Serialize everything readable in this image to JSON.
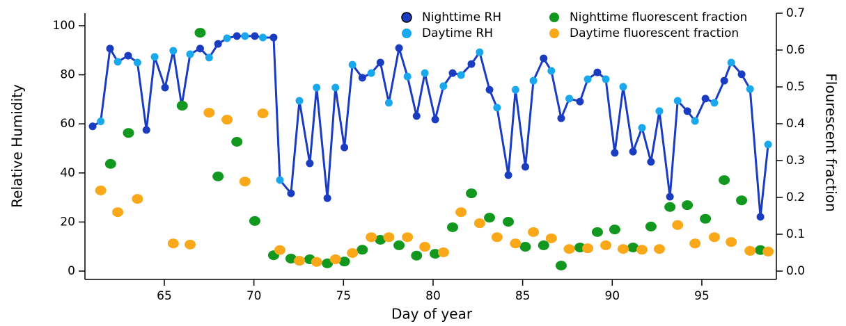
{
  "chart_data": {
    "type": "scatter",
    "xlabel": "Day of year",
    "ylabel": "Relative Humidity",
    "y2label": "Flourescent fraction",
    "xlim": [
      60.57,
      99.16
    ],
    "xticks": [
      65,
      70,
      75,
      80,
      85,
      90,
      95
    ],
    "ylim": [
      -3.4,
      105.1
    ],
    "yticks": [
      0,
      20,
      40,
      60,
      80,
      100
    ],
    "y2lim": [
      -0.0226,
      0.7
    ],
    "y2ticks": [
      {
        "value": 0,
        "label": "0.0"
      },
      0.1,
      0.2,
      0.3,
      0.4,
      0.5,
      0.6,
      0.7
    ],
    "rh_line_color": "#1a3cc0",
    "series": [
      {
        "name": "Nighttime RH",
        "color": "#1a3cc0",
        "axis": "y",
        "x": [
          61.0,
          61.97,
          62.98,
          64.0,
          65.04,
          65.97,
          67.0,
          68.0,
          69.05,
          70.05,
          71.1,
          72.07,
          73.12,
          74.1,
          75.05,
          76.05,
          77.06,
          78.1,
          79.08,
          80.12,
          81.09,
          82.14,
          83.15,
          84.2,
          85.15,
          86.17,
          87.15,
          88.2,
          89.17,
          90.14,
          91.16,
          92.16,
          93.22,
          94.19,
          95.2,
          96.25,
          97.22,
          98.27
        ],
        "values": [
          59,
          90.7,
          87.8,
          57.5,
          74.8,
          67.4,
          90.7,
          92.6,
          95.8,
          95.8,
          95.2,
          31.7,
          43.9,
          29.7,
          50.4,
          78.8,
          85,
          90.9,
          63.2,
          61.8,
          80.7,
          84.4,
          73.9,
          39.1,
          42.5,
          86.7,
          62.3,
          69.1,
          81,
          48.2,
          48.7,
          44.5,
          30.3,
          65.2,
          70.3,
          77.6,
          80.2,
          22.1
        ]
      },
      {
        "name": "Daytime RH",
        "color": "#1aa8ec",
        "axis": "y",
        "x": [
          61.45,
          62.4,
          63.5,
          64.46,
          65.5,
          66.44,
          67.5,
          68.5,
          69.5,
          70.5,
          71.45,
          72.54,
          73.5,
          74.55,
          75.5,
          76.55,
          77.53,
          78.57,
          79.54,
          80.58,
          81.56,
          82.6,
          83.57,
          84.6,
          85.6,
          86.6,
          87.6,
          88.63,
          89.64,
          90.61,
          91.66,
          92.63,
          93.65,
          94.62,
          95.7,
          96.64,
          97.69,
          98.7
        ],
        "values": [
          61,
          85.3,
          85,
          87.3,
          89.8,
          88.4,
          87,
          94.9,
          95.8,
          95.2,
          37.1,
          69.4,
          74.8,
          74.8,
          84.1,
          80.7,
          68.6,
          79.3,
          80.7,
          75.4,
          79.9,
          89.2,
          66.6,
          73.9,
          77.6,
          81.6,
          70.3,
          78.2,
          78.2,
          75.1,
          58.4,
          65.2,
          69.4,
          61.2,
          68.6,
          85,
          74.2,
          51.6
        ]
      },
      {
        "name": "Nighttime fluorescent fraction",
        "color": "#12981f",
        "axis": "y2",
        "x": [
          62.0,
          63.0,
          66.0,
          67.0,
          68.0,
          69.05,
          70.05,
          71.1,
          72.07,
          73.12,
          74.1,
          75.05,
          76.05,
          77.06,
          78.1,
          79.08,
          80.12,
          81.09,
          82.14,
          83.15,
          84.2,
          85.15,
          86.17,
          87.15,
          88.2,
          89.17,
          90.14,
          91.16,
          92.16,
          93.22,
          94.19,
          95.2,
          96.25,
          97.22,
          98.27
        ],
        "values": [
          0.291,
          0.375,
          0.449,
          0.647,
          0.257,
          0.351,
          0.136,
          0.043,
          0.034,
          0.032,
          0.021,
          0.026,
          0.058,
          0.085,
          0.07,
          0.042,
          0.047,
          0.119,
          0.211,
          0.145,
          0.134,
          0.066,
          0.07,
          0.015,
          0.064,
          0.106,
          0.113,
          0.064,
          0.121,
          0.174,
          0.179,
          0.142,
          0.247,
          0.192,
          0.057
        ]
      },
      {
        "name": "Daytime fluorescent fraction",
        "color": "#f9a81a",
        "axis": "y2",
        "x": [
          61.45,
          62.4,
          63.5,
          65.5,
          66.44,
          67.5,
          68.5,
          69.5,
          70.5,
          71.45,
          72.54,
          73.5,
          74.55,
          75.5,
          76.55,
          77.53,
          78.57,
          79.54,
          80.58,
          81.56,
          82.6,
          83.57,
          84.6,
          85.6,
          86.6,
          87.6,
          88.63,
          89.64,
          90.61,
          91.66,
          92.63,
          93.65,
          94.62,
          95.7,
          96.64,
          97.69,
          98.7
        ],
        "values": [
          0.219,
          0.16,
          0.196,
          0.075,
          0.072,
          0.43,
          0.411,
          0.243,
          0.428,
          0.057,
          0.028,
          0.025,
          0.032,
          0.049,
          0.092,
          0.092,
          0.092,
          0.066,
          0.051,
          0.16,
          0.13,
          0.092,
          0.075,
          0.106,
          0.089,
          0.06,
          0.062,
          0.07,
          0.06,
          0.058,
          0.06,
          0.125,
          0.075,
          0.092,
          0.079,
          0.055,
          0.053
        ]
      }
    ]
  }
}
